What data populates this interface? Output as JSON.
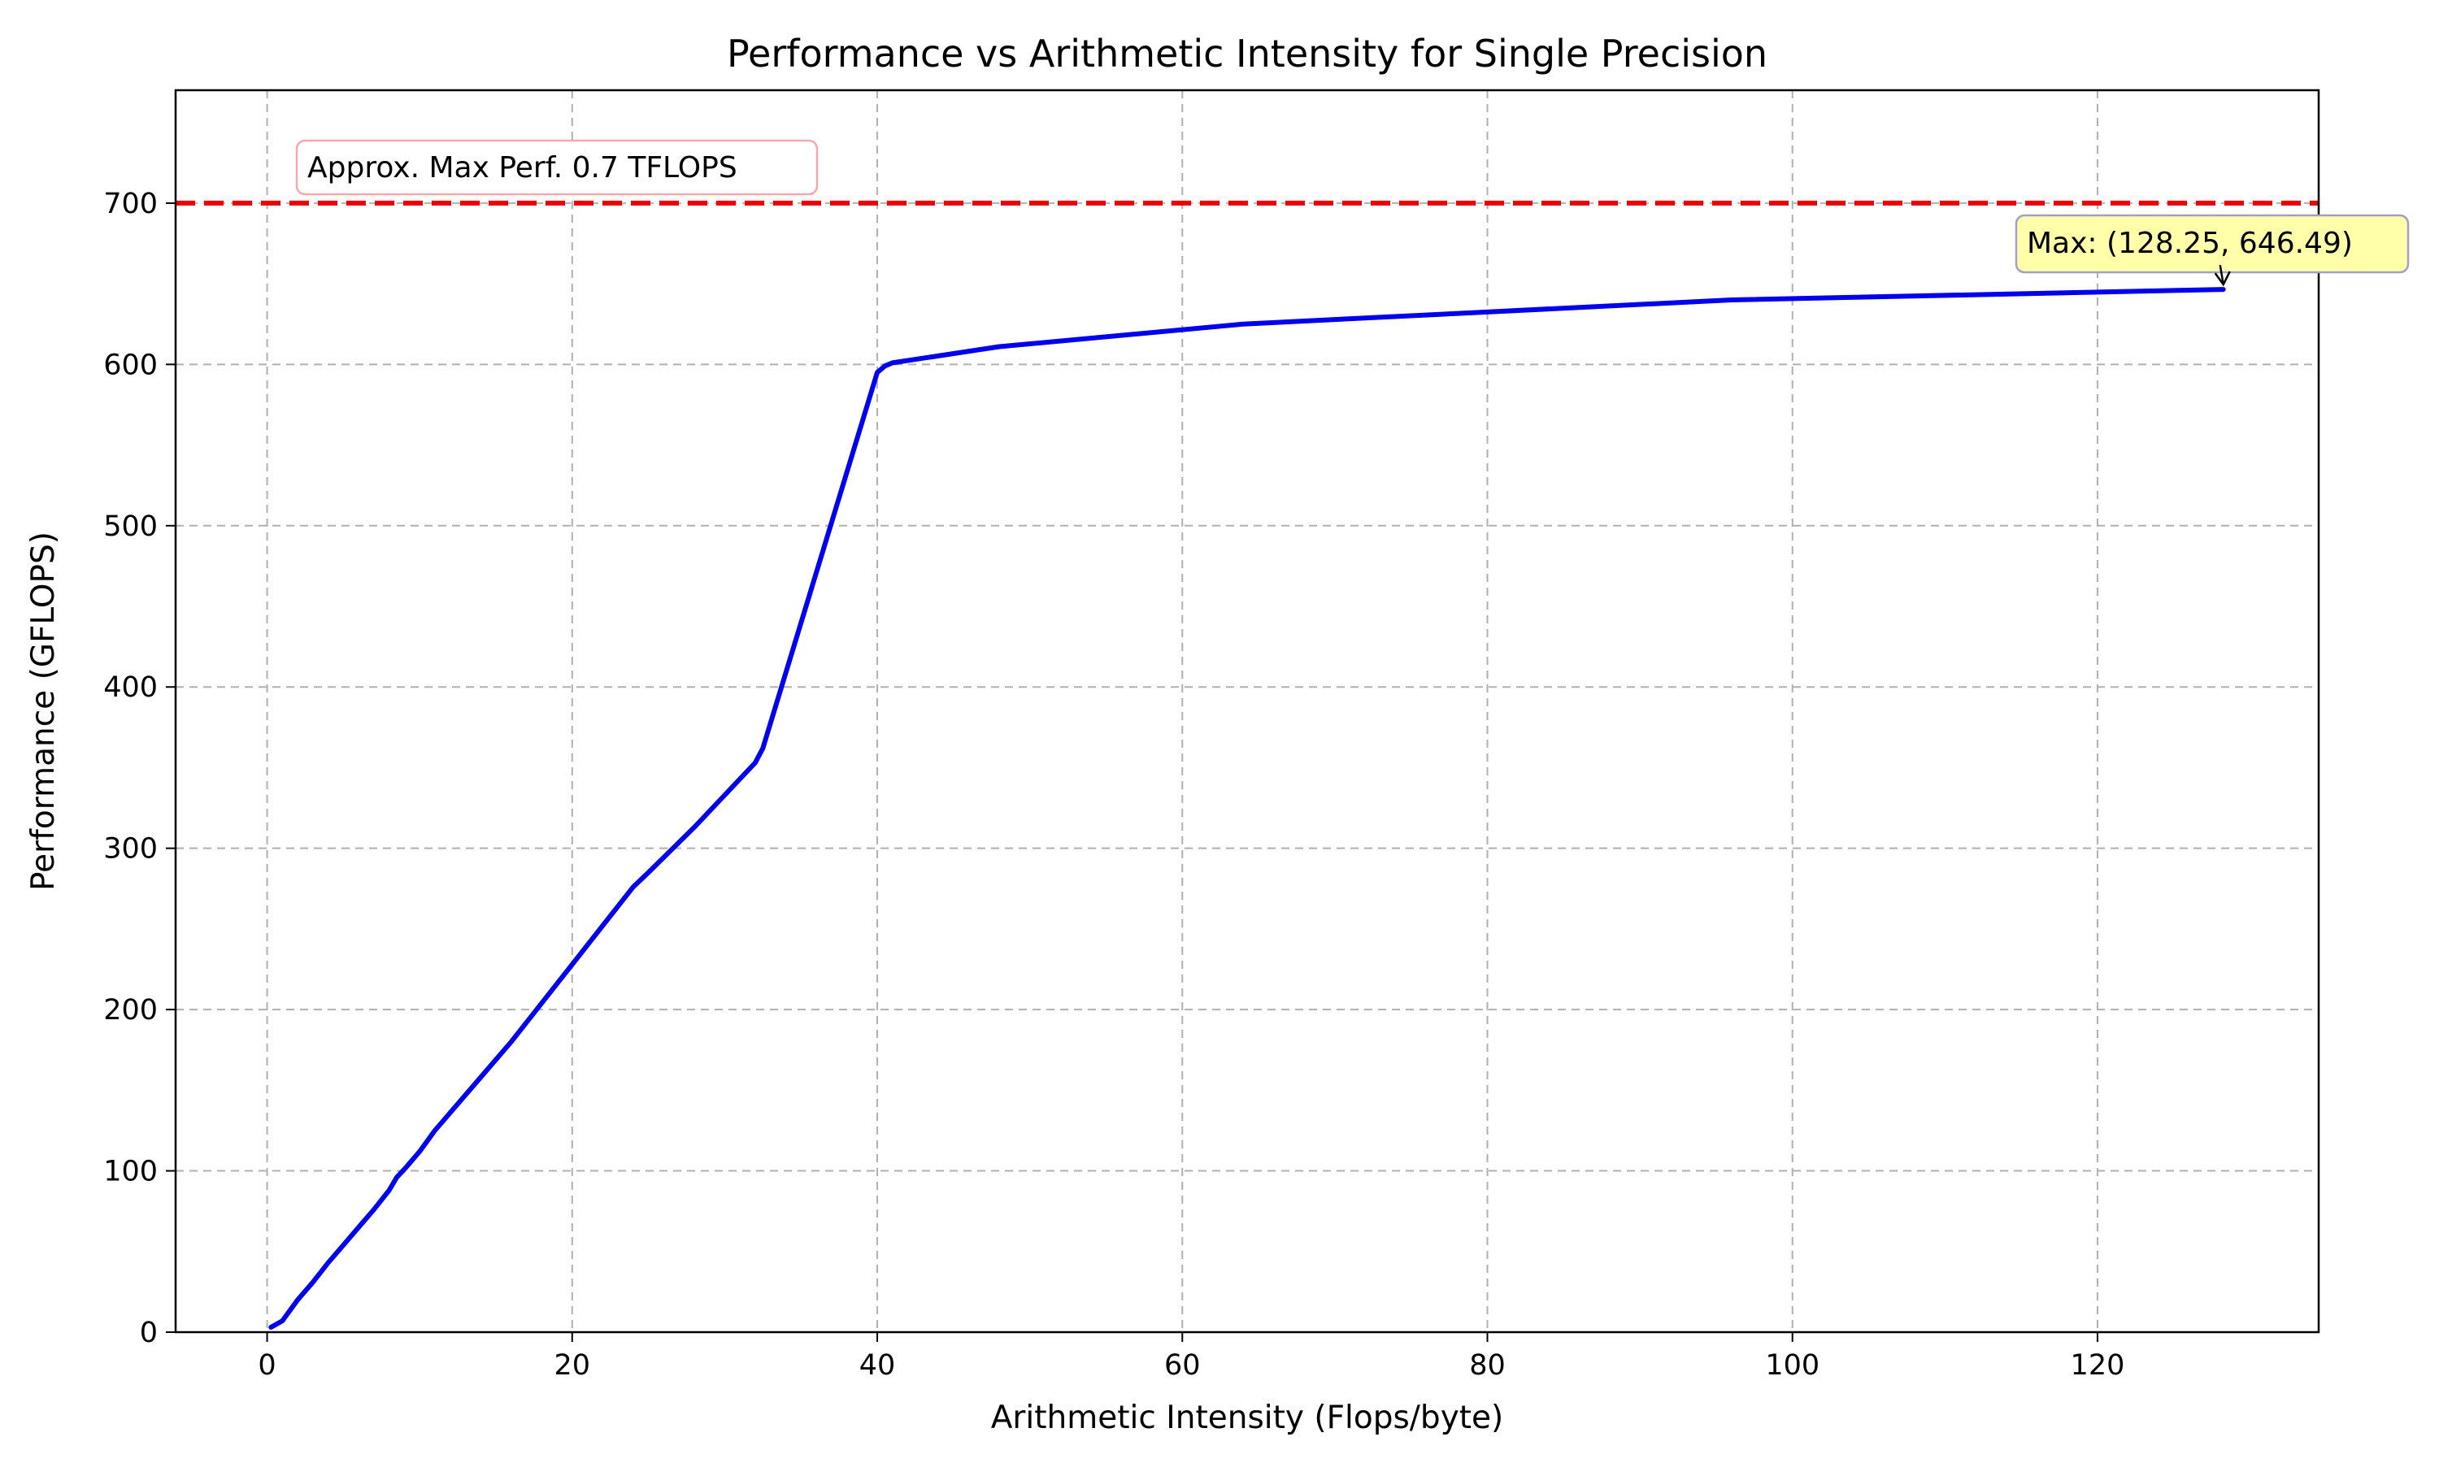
{
  "chart_data": {
    "type": "line",
    "title": "Performance vs Arithmetic Intensity for Single Precision",
    "xlabel": "Arithmetic Intensity (Flops/byte)",
    "ylabel": "Performance (GFLOPS)",
    "xlim": [
      -6,
      134.5
    ],
    "ylim": [
      0,
      770
    ],
    "xticks": [
      0,
      20,
      40,
      60,
      80,
      100,
      120
    ],
    "yticks": [
      0,
      100,
      200,
      300,
      400,
      500,
      600,
      700
    ],
    "grid": true,
    "series": [
      {
        "color": "#0000ee",
        "x": [
          0.25,
          1.0,
          2.0,
          3.0,
          4.0,
          5.0,
          6.0,
          7.0,
          8.0,
          8.5,
          9.0,
          10.0,
          11.0,
          12.0,
          14.0,
          16.0,
          18.0,
          20.0,
          22.0,
          24.0,
          25.0,
          28.0,
          32.0,
          32.5,
          40.0,
          40.5,
          41.0,
          48.0,
          64.0,
          96.0,
          128.25
        ],
        "y": [
          3,
          7,
          20,
          31,
          43,
          54,
          65,
          76,
          88,
          96,
          101,
          112,
          125,
          136,
          158,
          180,
          204,
          228,
          252,
          276,
          285,
          313,
          353,
          362,
          595,
          599,
          601,
          611,
          625,
          640,
          646.49
        ]
      }
    ],
    "reference_line": {
      "y": 700,
      "color": "#ee0000",
      "label": "Approx. Max Perf. 0.7 TFLOPS"
    },
    "max_annotation": {
      "x": 128.25,
      "y": 646.49,
      "text": "Max: (128.25, 646.49)"
    }
  }
}
